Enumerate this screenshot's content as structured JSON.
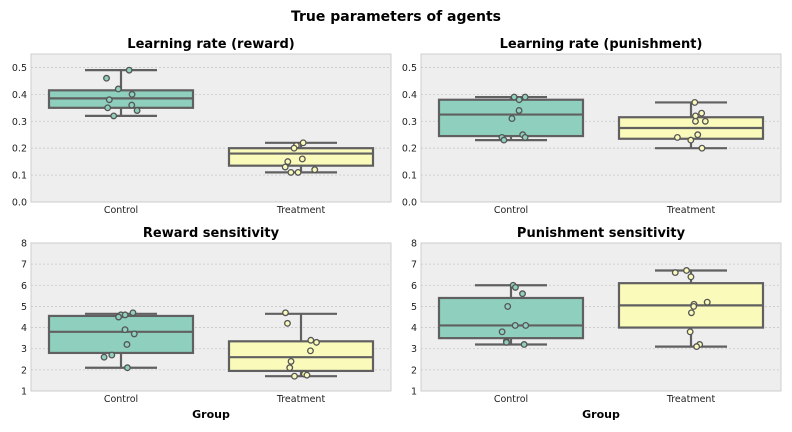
{
  "figure_title": "True parameters of agents",
  "chart_data": [
    {
      "type": "box",
      "title": "Learning rate (reward)",
      "xlabel": "",
      "ylabel": "",
      "ylim": [
        0,
        0.55
      ],
      "yticks": [
        0.0,
        0.1,
        0.2,
        0.3,
        0.4,
        0.5
      ],
      "ytick_labels": [
        "0.0",
        "0.1",
        "0.2",
        "0.3",
        "0.4",
        "0.5"
      ],
      "categories": [
        "Control",
        "Treatment"
      ],
      "box_colors": [
        "#8ecfbd",
        "#fafabb"
      ],
      "boxes": [
        {
          "whislo": 0.32,
          "q1": 0.35,
          "med": 0.385,
          "q3": 0.415,
          "whishi": 0.49
        },
        {
          "whislo": 0.11,
          "q1": 0.135,
          "med": 0.18,
          "q3": 0.2,
          "whishi": 0.22
        }
      ],
      "points": [
        [
          0.49,
          0.46,
          0.42,
          0.4,
          0.38,
          0.36,
          0.35,
          0.34,
          0.32
        ],
        [
          0.22,
          0.21,
          0.2,
          0.16,
          0.15,
          0.13,
          0.12,
          0.11,
          0.11
        ]
      ]
    },
    {
      "type": "box",
      "title": "Learning rate (punishment)",
      "xlabel": "",
      "ylabel": "",
      "ylim": [
        0,
        0.55
      ],
      "yticks": [
        0.0,
        0.1,
        0.2,
        0.3,
        0.4,
        0.5
      ],
      "ytick_labels": [
        "0.0",
        "0.1",
        "0.2",
        "0.3",
        "0.4",
        "0.5"
      ],
      "categories": [
        "Control",
        "Treatment"
      ],
      "box_colors": [
        "#8ecfbd",
        "#fafabb"
      ],
      "boxes": [
        {
          "whislo": 0.23,
          "q1": 0.245,
          "med": 0.325,
          "q3": 0.38,
          "whishi": 0.39
        },
        {
          "whislo": 0.2,
          "q1": 0.235,
          "med": 0.275,
          "q3": 0.315,
          "whishi": 0.37
        }
      ],
      "points": [
        [
          0.39,
          0.39,
          0.38,
          0.34,
          0.31,
          0.25,
          0.24,
          0.24,
          0.23
        ],
        [
          0.37,
          0.33,
          0.32,
          0.3,
          0.3,
          0.25,
          0.24,
          0.23,
          0.2
        ]
      ]
    },
    {
      "type": "box",
      "title": "Reward sensitivity",
      "xlabel": "Group",
      "ylabel": "",
      "ylim": [
        1,
        8
      ],
      "yticks": [
        1,
        2,
        3,
        4,
        5,
        6,
        7,
        8
      ],
      "ytick_labels": [
        "1",
        "2",
        "3",
        "4",
        "5",
        "6",
        "7",
        "8"
      ],
      "categories": [
        "Control",
        "Treatment"
      ],
      "box_colors": [
        "#8ecfbd",
        "#fafabb"
      ],
      "boxes": [
        {
          "whislo": 2.1,
          "q1": 2.8,
          "med": 3.8,
          "q3": 4.55,
          "whishi": 4.65
        },
        {
          "whislo": 1.7,
          "q1": 1.95,
          "med": 2.6,
          "q3": 3.35,
          "whishi": 4.65
        }
      ],
      "points": [
        [
          4.7,
          4.6,
          4.6,
          4.5,
          3.9,
          3.7,
          3.2,
          2.7,
          2.6,
          2.1
        ],
        [
          4.7,
          4.2,
          3.4,
          3.3,
          2.9,
          2.4,
          2.1,
          1.8,
          1.75,
          1.7
        ]
      ]
    },
    {
      "type": "box",
      "title": "Punishment sensitivity",
      "xlabel": "Group",
      "ylabel": "",
      "ylim": [
        1,
        8
      ],
      "yticks": [
        1,
        2,
        3,
        4,
        5,
        6,
        7,
        8
      ],
      "ytick_labels": [
        "1",
        "2",
        "3",
        "4",
        "5",
        "6",
        "7",
        "8"
      ],
      "categories": [
        "Control",
        "Treatment"
      ],
      "box_colors": [
        "#8ecfbd",
        "#fafabb"
      ],
      "boxes": [
        {
          "whislo": 3.2,
          "q1": 3.5,
          "med": 4.1,
          "q3": 5.4,
          "whishi": 6.0
        },
        {
          "whislo": 3.1,
          "q1": 4.0,
          "med": 5.05,
          "q3": 6.1,
          "whishi": 6.7
        }
      ],
      "points": [
        [
          6.0,
          5.9,
          5.6,
          5.0,
          4.1,
          4.1,
          3.8,
          3.35,
          3.3,
          3.2
        ],
        [
          6.7,
          6.6,
          6.4,
          5.2,
          5.1,
          5.0,
          4.7,
          3.8,
          3.2,
          3.1
        ]
      ]
    }
  ]
}
